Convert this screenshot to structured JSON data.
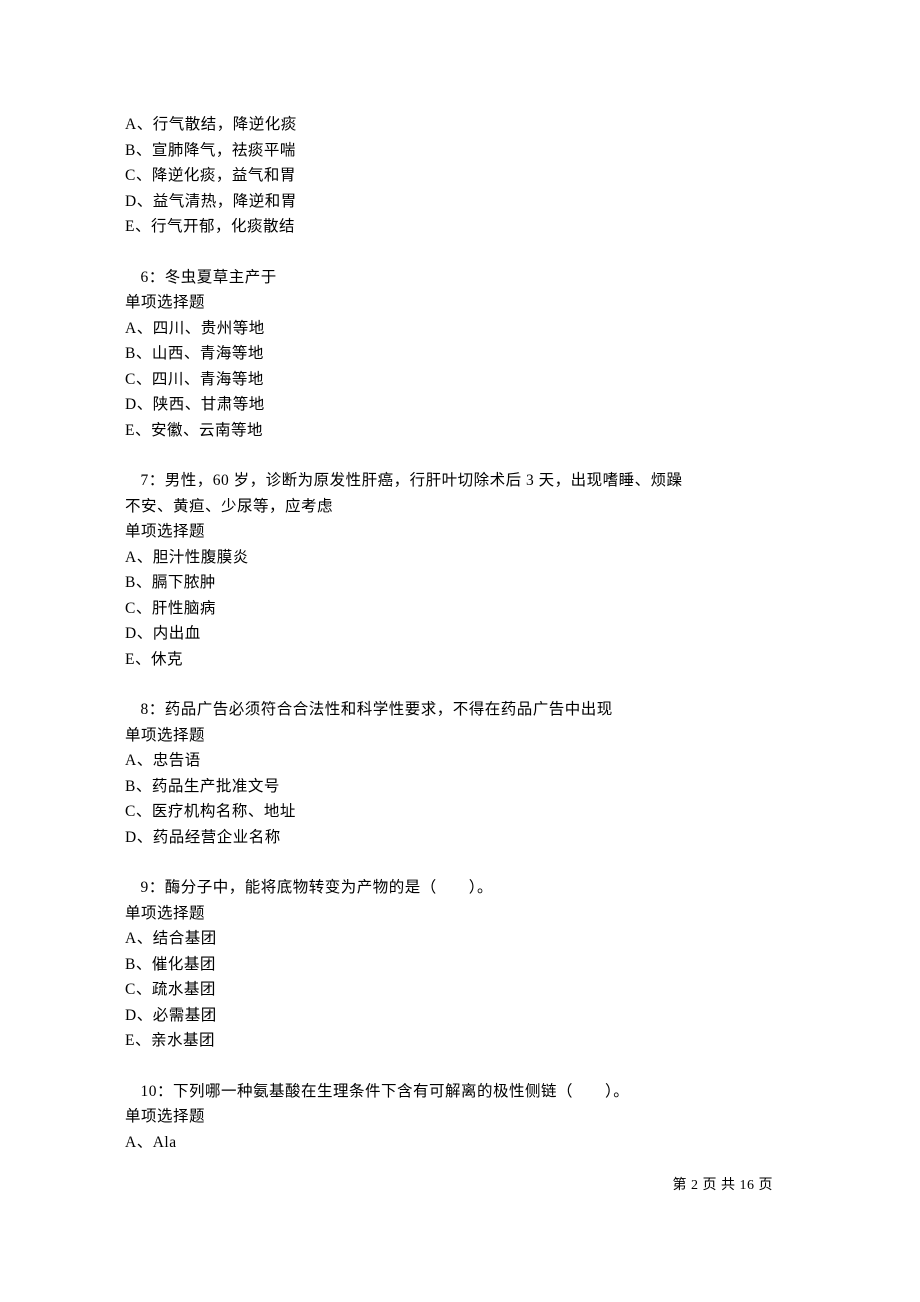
{
  "q5_options": {
    "a": "A、行气散结，降逆化痰",
    "b": "B、宣肺降气，祛痰平喘",
    "c": "C、降逆化痰，益气和胃",
    "d": "D、益气清热，降逆和胃",
    "e": "E、行气开郁，化痰散结"
  },
  "q6": {
    "stem": "6：冬虫夏草主产于",
    "type": "单项选择题",
    "a": "A、四川、贵州等地",
    "b": "B、山西、青海等地",
    "c": "C、四川、青海等地",
    "d": "D、陕西、甘肃等地",
    "e": "E、安徽、云南等地"
  },
  "q7": {
    "stem1": "7：男性，60 岁，诊断为原发性肝癌，行肝叶切除术后 3 天，出现嗜睡、烦躁",
    "stem2": "不安、黄疸、少尿等，应考虑",
    "type": "单项选择题",
    "a": "A、胆汁性腹膜炎",
    "b": "B、膈下脓肿",
    "c": "C、肝性脑病",
    "d": "D、内出血",
    "e": "E、休克"
  },
  "q8": {
    "stem": "8：药品广告必须符合合法性和科学性要求，不得在药品广告中出现",
    "type": "单项选择题",
    "a": "A、忠告语",
    "b": "B、药品生产批准文号",
    "c": "C、医疗机构名称、地址",
    "d": "D、药品经营企业名称"
  },
  "q9": {
    "stem": "9：酶分子中，能将底物转变为产物的是（　　）。",
    "type": "单项选择题",
    "a": "A、结合基团",
    "b": "B、催化基团",
    "c": "C、疏水基团",
    "d": "D、必需基团",
    "e": "E、亲水基团"
  },
  "q10": {
    "stem": "10：下列哪一种氨基酸在生理条件下含有可解离的极性侧链（　　）。",
    "type": "单项选择题",
    "a": "A、Ala"
  },
  "footer": "第 2 页 共 16 页"
}
